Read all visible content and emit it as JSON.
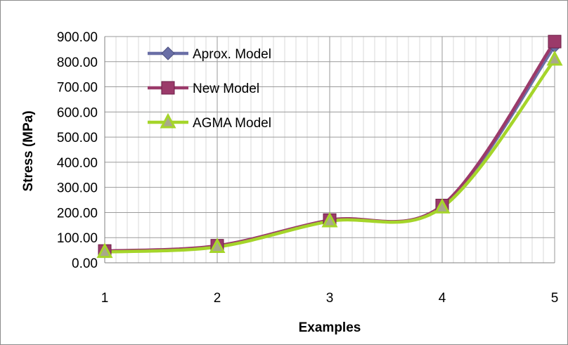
{
  "chart_data": {
    "type": "line",
    "title": "",
    "xlabel": "Examples",
    "ylabel": "Stress (MPa)",
    "x": [
      1,
      2,
      3,
      4,
      5
    ],
    "x_tick_labels": [
      "1",
      "2",
      "3",
      "4",
      "5"
    ],
    "y_tick_labels": [
      "0.00",
      "100.00",
      "200.00",
      "300.00",
      "400.00",
      "500.00",
      "600.00",
      "700.00",
      "800.00",
      "900.00"
    ],
    "ylim": [
      0,
      900
    ],
    "xlim": [
      1,
      5
    ],
    "grid": true,
    "smooth": true,
    "legend_position": "top-left",
    "series": [
      {
        "name": "Aprox. Model",
        "values": [
          45,
          65,
          168,
          225,
          862
        ],
        "color": "#6a6fa6",
        "marker": "diamond"
      },
      {
        "name": "New Model",
        "values": [
          47,
          68,
          170,
          228,
          880
        ],
        "color": "#9b3a6a",
        "marker": "square"
      },
      {
        "name": "AGMA Model",
        "values": [
          43,
          63,
          165,
          220,
          808
        ],
        "color": "#a5d52a",
        "marker": "triangle"
      }
    ]
  }
}
